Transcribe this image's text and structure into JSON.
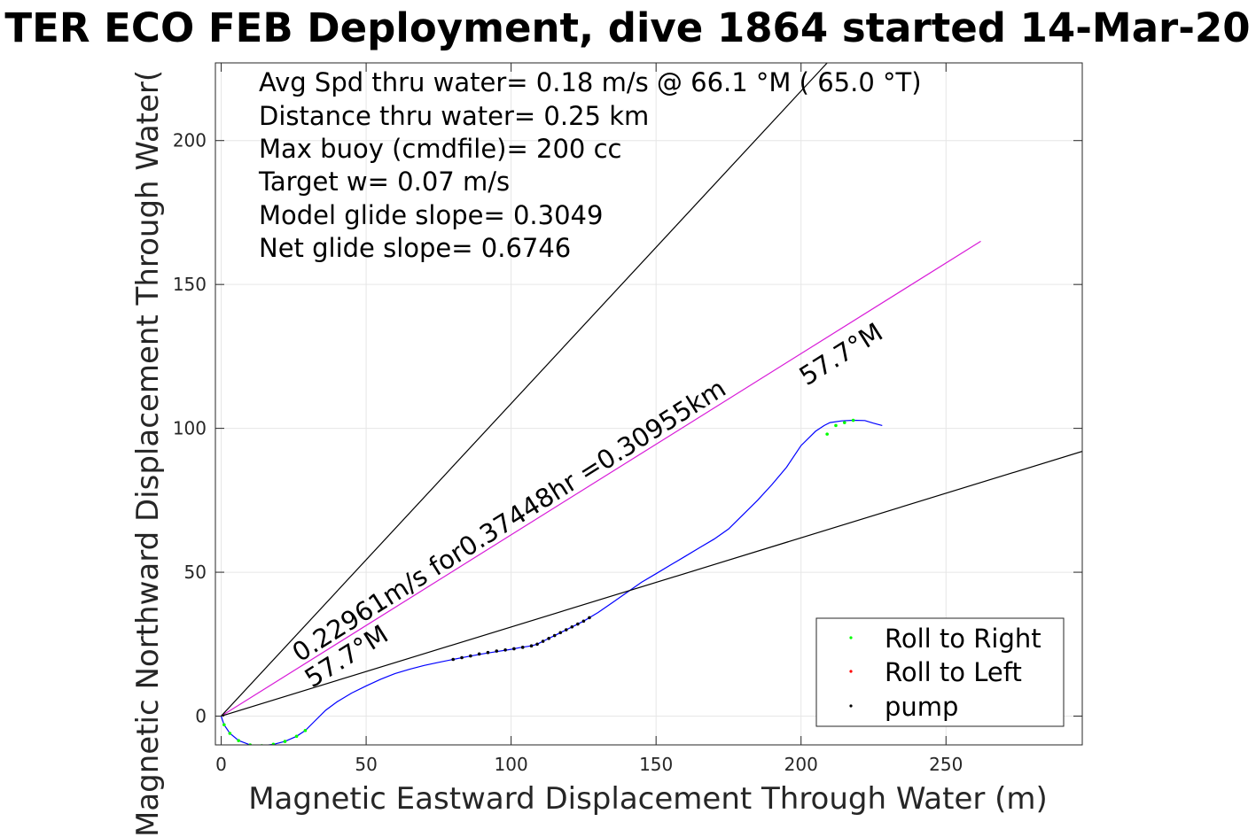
{
  "chart_data": {
    "type": "line",
    "title": "TER ECO FEB Deployment, dive 1864 started 14-Mar-20",
    "xlabel": "Magnetic Eastward Displacement Through Water (m)",
    "ylabel": "Magnetic Northward Displacement Through Water(",
    "xlim": [
      -2,
      297
    ],
    "ylim": [
      -10,
      227
    ],
    "xticks": [
      0,
      50,
      100,
      150,
      200,
      250
    ],
    "yticks": [
      0,
      50,
      100,
      150,
      200
    ],
    "grid": true,
    "stats_text": [
      "Avg Spd thru water=  0.18 m/s @  66.1 °M ( 65.0 °T)",
      "Distance thru water=  0.25 km",
      "Max buoy (cmdfile)= 200 cc",
      "Target w= 0.07 m/s",
      "Model glide slope= 0.3049",
      "Net glide slope= 0.6746"
    ],
    "annotations": {
      "track_label": "0.22961m/s for0.37448hr =0.30955km",
      "heading_upper": "57.7°M",
      "heading_lower": "57.7°M"
    },
    "series": [
      {
        "name": "track",
        "color": "#0000ff",
        "x": [
          0,
          1,
          3,
          6,
          10,
          14,
          18,
          22,
          26,
          29,
          32,
          36,
          40,
          45,
          50,
          55,
          60,
          65,
          70,
          75,
          80,
          85,
          90,
          95,
          100,
          103,
          107,
          109,
          112,
          116,
          120,
          125,
          130,
          135,
          140,
          145,
          150,
          155,
          160,
          165,
          170,
          175,
          180,
          185,
          190,
          195,
          200,
          205,
          208,
          210,
          214,
          218,
          222,
          225,
          228
        ],
        "y": [
          0,
          -3,
          -6,
          -8.5,
          -10,
          -10.3,
          -9.8,
          -8.8,
          -7,
          -5,
          -2,
          2,
          5,
          8,
          10.5,
          12.8,
          14.8,
          16.3,
          17.6,
          18.7,
          19.7,
          20.7,
          21.6,
          22.4,
          23.2,
          23.8,
          24.4,
          25,
          26.5,
          28.5,
          30.5,
          33,
          36,
          39.5,
          43,
          46.5,
          49.5,
          52.5,
          55.5,
          58.5,
          61.5,
          65,
          70,
          75,
          80.5,
          86.5,
          94,
          99,
          101,
          102,
          102.6,
          102.8,
          102.7,
          101.8,
          101
        ]
      },
      {
        "name": "net track line",
        "color": "#d81bd8",
        "x": [
          0,
          262
        ],
        "y": [
          0,
          165
        ]
      },
      {
        "name": "reference line A",
        "color": "#000000",
        "x": [
          0,
          209
        ],
        "y": [
          0,
          227
        ]
      },
      {
        "name": "reference line B",
        "color": "#000000",
        "x": [
          0,
          297
        ],
        "y": [
          0,
          92
        ]
      }
    ],
    "markers": {
      "roll_right": {
        "name": "Roll to Right",
        "color": "#00ff00",
        "x": [
          1,
          3,
          6,
          10,
          14,
          18,
          22,
          26,
          29,
          209,
          212,
          215,
          218
        ],
        "y": [
          -3,
          -6,
          -8.5,
          -10,
          -10.3,
          -9.8,
          -8.8,
          -7,
          -5,
          98,
          101,
          102,
          102.8
        ]
      },
      "roll_left": {
        "name": "Roll to Left",
        "color": "#ff0000",
        "x": [],
        "y": []
      },
      "pump": {
        "name": "pump",
        "color": "#000000",
        "x": [
          80,
          83,
          86,
          89,
          92,
          95,
          98,
          101,
          104,
          107,
          109,
          111,
          113,
          115,
          117,
          119,
          121,
          123,
          125,
          127
        ],
        "y": [
          19.7,
          20.3,
          20.9,
          21.6,
          22.1,
          22.6,
          23,
          23.4,
          23.9,
          24.4,
          25,
          26,
          27,
          28,
          29,
          30,
          31,
          32,
          33,
          34.2
        ]
      }
    },
    "legend": {
      "position": "bottom-right",
      "entries": [
        "Roll to Right",
        "Roll to Left",
        "pump"
      ]
    }
  }
}
